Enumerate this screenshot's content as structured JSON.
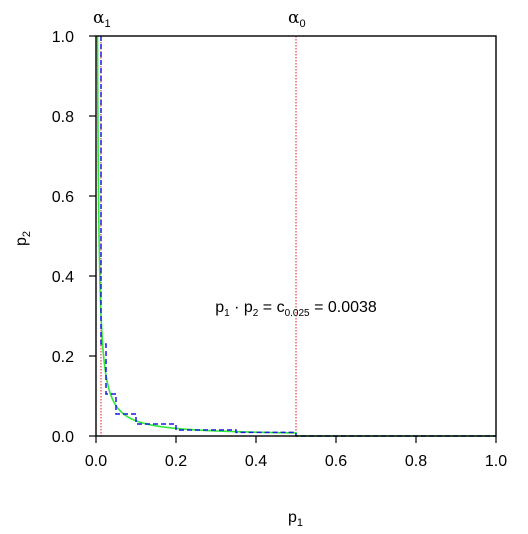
{
  "chart_data": {
    "type": "line",
    "title": "",
    "xlabel": {
      "main": "p",
      "sub": "1"
    },
    "ylabel": {
      "main": "p",
      "sub": "2"
    },
    "xlim": [
      0,
      1
    ],
    "ylim": [
      0,
      1
    ],
    "x_ticks": [
      "0.0",
      "0.2",
      "0.4",
      "0.6",
      "0.8",
      "1.0"
    ],
    "y_ticks": [
      "0.0",
      "0.2",
      "0.4",
      "0.6",
      "0.8",
      "1.0"
    ],
    "grid": false,
    "legend": false,
    "constant_c": 0.0038,
    "alpha_lines": [
      {
        "symbol": "α",
        "sub": "1",
        "x": 0.0125,
        "color": "#e8191f"
      },
      {
        "symbol": "α",
        "sub": "0",
        "x": 0.5,
        "color": "#e8191f"
      }
    ],
    "annotation": {
      "x": 0.5,
      "y": 0.33,
      "parts": [
        {
          "main": "p",
          "sub": "1"
        },
        {
          "main": " · p",
          "sub": "2"
        },
        {
          "main": " = c",
          "sub": "0.025"
        },
        {
          "main": " = 0.0038",
          "sub": ""
        }
      ]
    },
    "series": [
      {
        "type": "curve",
        "color": "#2ee83a",
        "dashed": false,
        "curve": "p1*p2=c",
        "x_range": [
          0.0038,
          0.5
        ],
        "tail": [
          [
            0.5,
            0
          ],
          [
            1.0,
            0
          ]
        ]
      },
      {
        "type": "step",
        "color": "#1a1ae0",
        "dashed": true,
        "points": [
          [
            0.0125,
            1.0
          ],
          [
            0.0125,
            0.23
          ],
          [
            0.025,
            0.23
          ],
          [
            0.025,
            0.105
          ],
          [
            0.05,
            0.105
          ],
          [
            0.05,
            0.055
          ],
          [
            0.1,
            0.055
          ],
          [
            0.1,
            0.03
          ],
          [
            0.2,
            0.03
          ],
          [
            0.2,
            0.015
          ],
          [
            0.35,
            0.015
          ],
          [
            0.35,
            0.009
          ],
          [
            0.5,
            0.009
          ],
          [
            0.5,
            0.0
          ],
          [
            1.0,
            0.0
          ]
        ]
      }
    ],
    "colors": {
      "curve": "#2ee83a",
      "step": "#1a1ae0",
      "alpha_line": "#e8191f",
      "axis": "#000000"
    }
  }
}
